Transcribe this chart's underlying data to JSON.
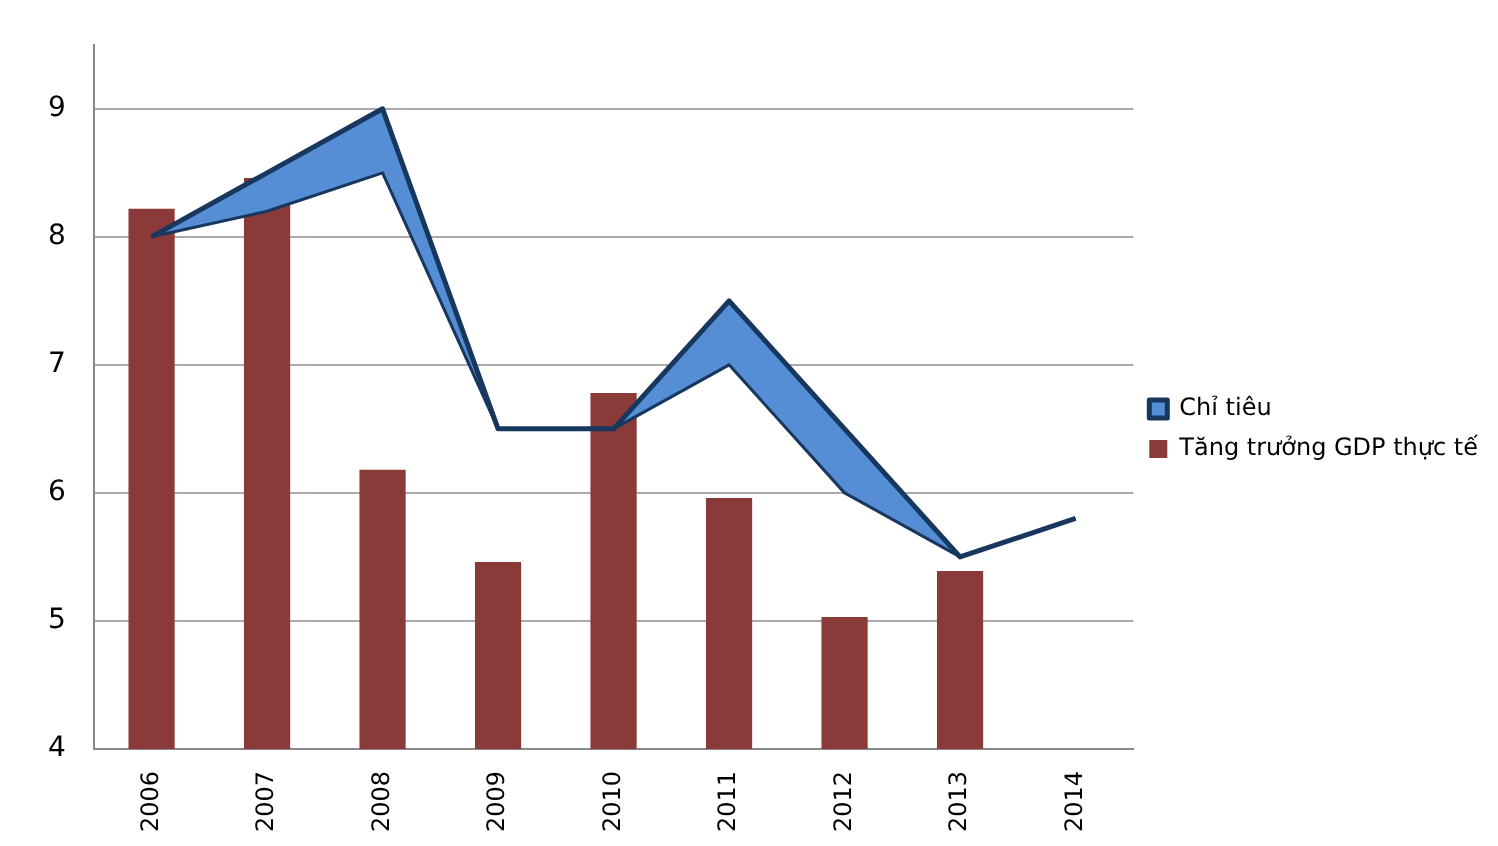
{
  "chart_data": {
    "type": "bar",
    "categories": [
      "2006",
      "2007",
      "2008",
      "2009",
      "2010",
      "2011",
      "2012",
      "2013",
      "2014"
    ],
    "series": [
      {
        "type": "line",
        "color": "#17375e",
        "values": [
          8,
          8.2,
          8.5,
          6.5,
          6.5,
          7,
          6,
          5.5,
          5.8
        ]
      },
      {
        "name": "Chỉ tiêu",
        "type": "area",
        "color": "#558ed5",
        "values": [
          8,
          8.5,
          9,
          6.5,
          6.5,
          7.5,
          6.5,
          5.5,
          5.8
        ]
      },
      {
        "name": "Tăng trưởng GDP thực tế",
        "type": "bar",
        "color": "#8b3a3a",
        "values": [
          8.22,
          8.46,
          6.18,
          5.46,
          6.78,
          5.96,
          5.03,
          5.39,
          null
        ]
      }
    ],
    "ylim": [
      4,
      9.5
    ],
    "yticks": [
      4,
      5,
      6,
      7,
      8,
      9
    ],
    "grid": "y",
    "legend": "right"
  }
}
